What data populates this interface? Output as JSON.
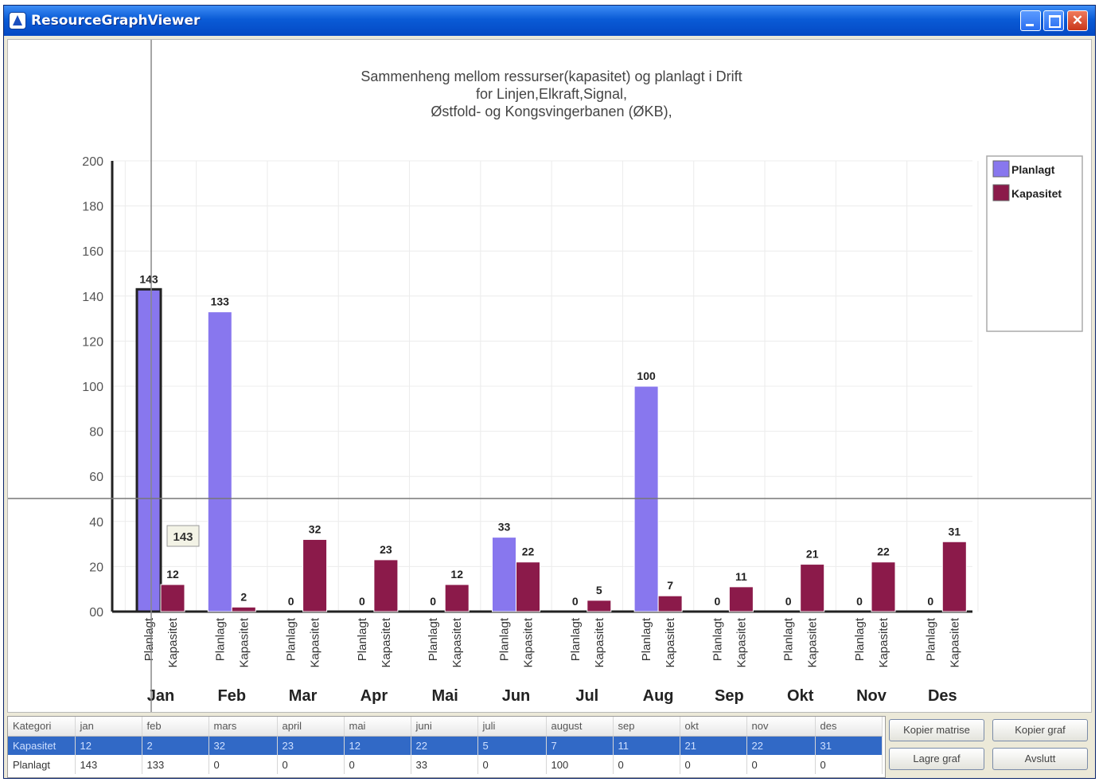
{
  "window": {
    "title": "ResourceGraphViewer"
  },
  "chart_data": {
    "type": "bar",
    "title_lines": [
      "Sammenheng mellom ressurser(kapasitet) og planlagt i Drift",
      "for Linjen,Elkraft,Signal,",
      "Østfold- og Kongsvingerbanen (ØKB),"
    ],
    "categories": [
      "Jan",
      "Feb",
      "Mar",
      "Apr",
      "Mai",
      "Jun",
      "Jul",
      "Aug",
      "Sep",
      "Okt",
      "Nov",
      "Des"
    ],
    "series": [
      {
        "name": "Planlagt",
        "color": "#8877ee",
        "values": [
          143,
          133,
          0,
          0,
          0,
          33,
          0,
          100,
          0,
          0,
          0,
          0
        ]
      },
      {
        "name": "Kapasitet",
        "color": "#8b1a4a",
        "values": [
          12,
          2,
          32,
          23,
          12,
          22,
          5,
          7,
          11,
          21,
          22,
          31
        ]
      }
    ],
    "bar_labels": [
      "Planlagt",
      "Kapasitet"
    ],
    "y_ticks": [
      "00",
      "20",
      "40",
      "60",
      "80",
      "100",
      "120",
      "140",
      "160",
      "180",
      "200"
    ],
    "ylim": [
      0,
      200
    ],
    "grid": true,
    "legend_position": "top-right",
    "tooltip_value": "143",
    "highlighted": {
      "category": "Jan",
      "series": "Planlagt"
    }
  },
  "grid": {
    "headers": [
      "Kategori",
      "jan",
      "feb",
      "mars",
      "april",
      "mai",
      "juni",
      "juli",
      "august",
      "sep",
      "okt",
      "nov",
      "des"
    ],
    "rows": [
      {
        "label": "Kapasitet",
        "values": [
          "12",
          "2",
          "32",
          "23",
          "12",
          "22",
          "5",
          "7",
          "11",
          "21",
          "22",
          "31"
        ]
      },
      {
        "label": "Planlagt",
        "values": [
          "143",
          "133",
          "0",
          "0",
          "0",
          "33",
          "0",
          "100",
          "0",
          "0",
          "0",
          "0"
        ]
      }
    ]
  },
  "buttons": {
    "copy_matrix": "Kopier matrise",
    "copy_graph": "Kopier graf",
    "save_graph": "Lagre graf",
    "exit": "Avslutt"
  }
}
